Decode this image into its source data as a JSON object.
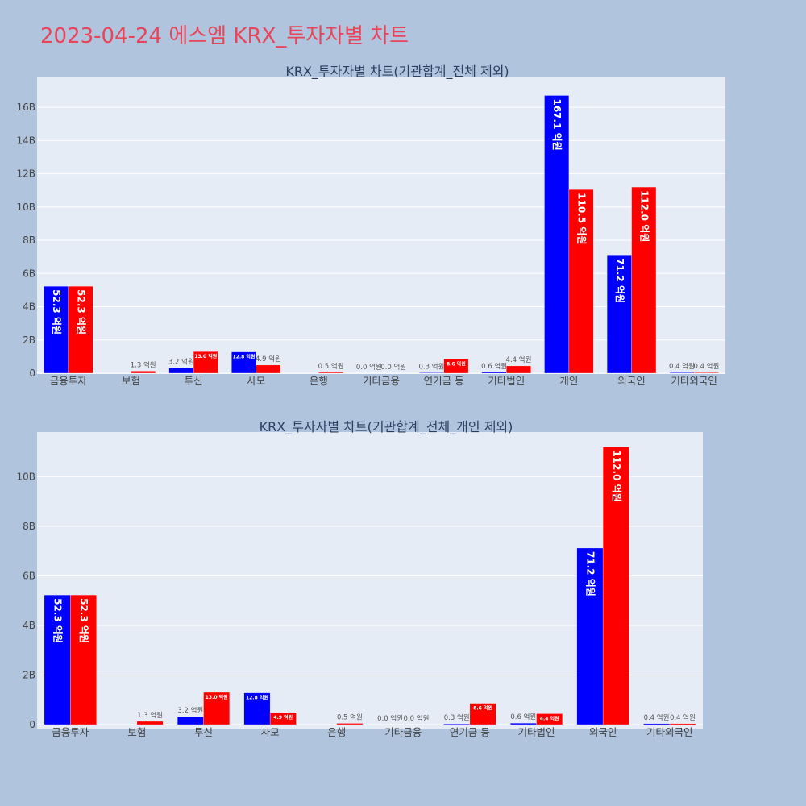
{
  "page": {
    "title": "2023-04-24 에스엠 KRX_투자자별 차트"
  },
  "colors": {
    "background": "#b0c4de",
    "plot_bg": "#e5ecf6",
    "buy": "#0000ff",
    "sell": "#ff0000",
    "title": "#e8455a",
    "grid": "#ffffff"
  },
  "chart_data": [
    {
      "type": "bar",
      "title": "KRX_투자자별 차트(기관합계_전체 제외)",
      "categories": [
        "금융투자",
        "보험",
        "투신",
        "사모",
        "은행",
        "기타금융",
        "연기금 등",
        "기타법인",
        "개인",
        "외국인",
        "기타외국인"
      ],
      "series": [
        {
          "color": "#0000ff",
          "values": [
            5.23,
            0,
            0.32,
            1.28,
            0,
            0.0,
            0.03,
            0.06,
            16.71,
            7.12,
            0.04
          ]
        },
        {
          "color": "#ff0000",
          "values": [
            5.23,
            0.13,
            1.3,
            0.49,
            0.05,
            0.0,
            0.86,
            0.44,
            11.05,
            11.2,
            0.04
          ]
        }
      ],
      "labels": [
        [
          "52.3 억원",
          "",
          "3.2 억원",
          "12.8 억원",
          "",
          "0.0 억원",
          "0.3 억원",
          "0.6 억원",
          "167.1 억원",
          "71.2 억원",
          "0.4 억원"
        ],
        [
          "52.3 억원",
          "1.3 억원",
          "13.0 억원",
          "4.9 억원",
          "0.5 억원",
          "0.0 억원",
          "8.6 억원",
          "4.4 억원",
          "110.5 억원",
          "112.0 억원",
          "0.4 억원"
        ]
      ],
      "y_unit": "B",
      "ylim": [
        0,
        17.8
      ],
      "yticks": [
        0,
        2,
        4,
        6,
        8,
        10,
        12,
        14,
        16
      ],
      "grid": true,
      "legend": "none"
    },
    {
      "type": "bar",
      "title": "KRX_투자자별 차트(기관합계_전체_개인 제외)",
      "categories": [
        "금융투자",
        "보험",
        "투신",
        "사모",
        "은행",
        "기타금융",
        "연기금 등",
        "기타법인",
        "외국인",
        "기타외국인"
      ],
      "series": [
        {
          "color": "#0000ff",
          "values": [
            5.23,
            0,
            0.32,
            1.28,
            0,
            0.0,
            0.03,
            0.06,
            7.12,
            0.04
          ]
        },
        {
          "color": "#ff0000",
          "values": [
            5.23,
            0.13,
            1.3,
            0.49,
            0.05,
            0.0,
            0.86,
            0.44,
            11.2,
            0.04
          ]
        }
      ],
      "labels": [
        [
          "52.3 억원",
          "",
          "3.2 억원",
          "12.8 억원",
          "",
          "0.0 억원",
          "0.3 억원",
          "0.6 억원",
          "71.2 억원",
          "0.4 억원"
        ],
        [
          "52.3 억원",
          "1.3 억원",
          "13.0 억원",
          "4.9 억원",
          "0.5 억원",
          "0.0 억원",
          "8.6 억원",
          "4.4 억원",
          "112.0 억원",
          "0.4 억원"
        ]
      ],
      "y_unit": "B",
      "ylim": [
        0,
        11.8
      ],
      "yticks": [
        0,
        2,
        4,
        6,
        8,
        10
      ],
      "grid": true,
      "legend": "none"
    }
  ]
}
